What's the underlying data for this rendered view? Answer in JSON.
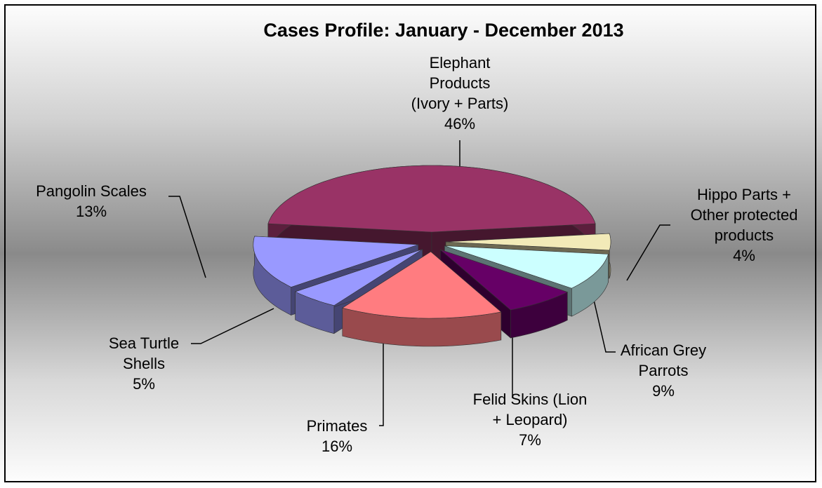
{
  "chart_data": {
    "type": "pie3d",
    "title": "Cases Profile:  January - December   2013",
    "categories": [
      "Elephant\nProducts\n(Ivory + Parts)",
      "Hippo Parts +\nOther protected\nproducts",
      "African Grey\nParrots",
      "Felid Skins (Lion\n+ Leopard)",
      "Primates",
      "Sea Turtle\nShells",
      "Pangolin Scales"
    ],
    "values": [
      46,
      4,
      9,
      7,
      16,
      5,
      13
    ],
    "value_labels": [
      "46%",
      "4%",
      "9%",
      "7%",
      "16%",
      "5%",
      "13%"
    ],
    "colors": [
      "#993366",
      "#f2eab8",
      "#ccffff",
      "#660066",
      "#ff7c80",
      "#9999ff",
      "#9999ff"
    ]
  }
}
